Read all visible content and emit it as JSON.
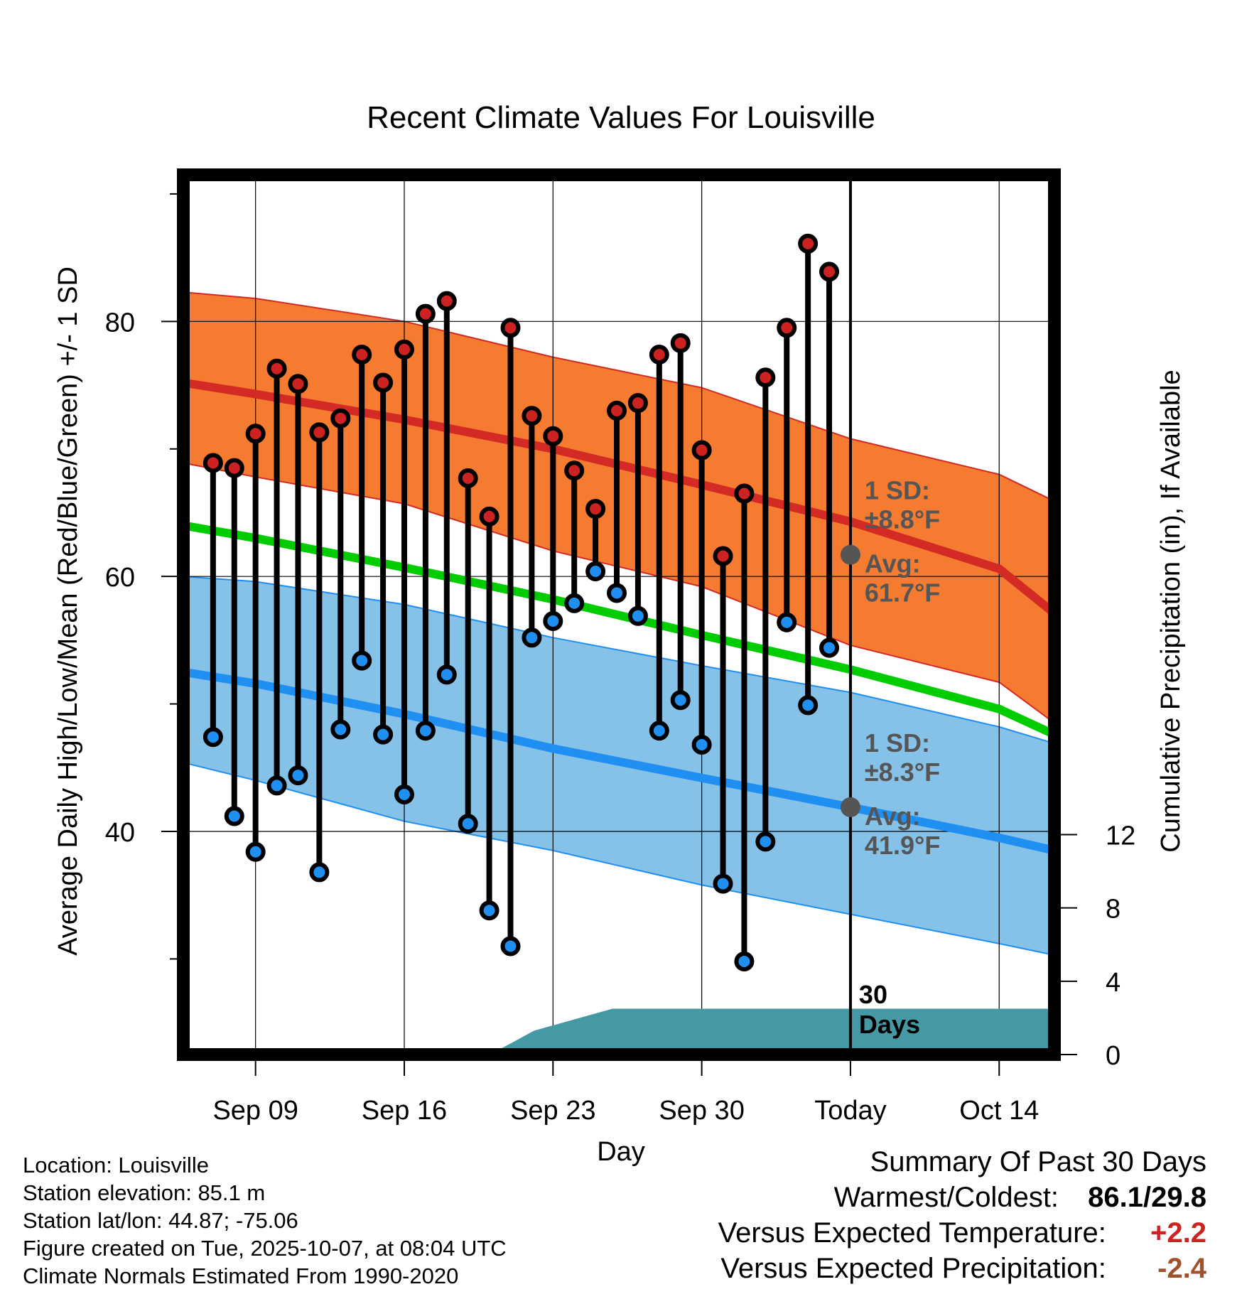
{
  "chart_data": {
    "type": "line",
    "title": "Recent Climate Values For Louisville",
    "xlabel": "Day",
    "ylabel": "Average Daily High/Low/Mean (Red/Blue/Green) +/- 1 SD",
    "ylabel_right": "Cumulative Precipitation (in), If Available",
    "x_tick_labels": [
      "Sep 09",
      "Sep 16",
      "Sep 23",
      "Sep 30",
      "Today",
      "Oct 14"
    ],
    "x_tick_days": [
      9,
      16,
      23,
      30,
      37,
      44
    ],
    "xlim": [
      5.6,
      46.6
    ],
    "ylim": [
      22.5,
      91.5
    ],
    "y_ticks": [
      40,
      60,
      80
    ],
    "y_ticks_right": [
      0,
      4,
      8,
      12
    ],
    "right_axis_range": [
      0,
      48
    ],
    "today_day": 37,
    "today_label": [
      "30",
      "Days"
    ],
    "normal_high": {
      "x": [
        5.6,
        9,
        16,
        23,
        30,
        37,
        44,
        46.6
      ],
      "values": [
        75.2,
        74.3,
        72.3,
        70.0,
        67.2,
        64.3,
        60.6,
        57.1
      ]
    },
    "normal_high_sd": {
      "upper": [
        82.3,
        81.8,
        80.0,
        77.2,
        74.8,
        70.8,
        68.0,
        65.9
      ],
      "lower": [
        68.9,
        67.8,
        65.7,
        62.0,
        59.2,
        54.6,
        51.7,
        48.5
      ]
    },
    "normal_mean": {
      "x": [
        5.6,
        9,
        16,
        23,
        30,
        37,
        44,
        46.6
      ],
      "values": [
        64.0,
        63.0,
        60.7,
        58.2,
        55.4,
        52.7,
        49.6,
        47.6
      ]
    },
    "normal_low": {
      "x": [
        5.6,
        9,
        16,
        23,
        30,
        37,
        44,
        46.6
      ],
      "values": [
        52.5,
        51.6,
        49.2,
        46.5,
        44.2,
        41.9,
        39.5,
        38.5
      ]
    },
    "normal_low_sd": {
      "upper": [
        60.0,
        59.6,
        57.8,
        55.2,
        53.0,
        50.9,
        48.2,
        46.9
      ],
      "lower": [
        45.4,
        44.0,
        40.8,
        38.5,
        35.8,
        33.5,
        31.2,
        30.3
      ]
    },
    "high_sd_label": [
      "1 SD:",
      "±8.8°F"
    ],
    "high_avg_label": [
      "Avg:",
      "61.7°F"
    ],
    "high_avg_value": 61.7,
    "low_sd_label": [
      "1 SD:",
      "±8.3°F"
    ],
    "low_avg_label": [
      "Avg:",
      "41.9°F"
    ],
    "low_avg_value": 41.9,
    "days": [
      7,
      8,
      9,
      10,
      11,
      12,
      13,
      14,
      15,
      16,
      17,
      18,
      19,
      20,
      21,
      22,
      23,
      24,
      25,
      26,
      27,
      28,
      29,
      30,
      31,
      32,
      33,
      34,
      35,
      36
    ],
    "highs": [
      68.9,
      68.5,
      71.2,
      76.3,
      75.1,
      71.3,
      72.4,
      77.4,
      75.2,
      77.8,
      80.6,
      81.6,
      67.7,
      64.7,
      79.5,
      72.6,
      71.0,
      68.3,
      65.3,
      73.0,
      73.6,
      77.4,
      78.3,
      69.9,
      61.6,
      66.5,
      75.6,
      79.5,
      86.1,
      83.9
    ],
    "lows": [
      47.4,
      41.2,
      38.4,
      43.6,
      44.4,
      36.8,
      48.0,
      53.4,
      47.6,
      42.9,
      47.9,
      52.3,
      40.6,
      33.8,
      31.0,
      55.2,
      56.5,
      57.9,
      60.4,
      58.7,
      56.9,
      47.9,
      50.3,
      46.8,
      35.9,
      29.8,
      39.2,
      56.4,
      49.9,
      54.4
    ],
    "precip": {
      "days": [
        18.7,
        20.0,
        21.0,
        22.1,
        25.8,
        46.6
      ],
      "values": [
        0,
        0,
        0.6,
        1.3,
        2.5,
        2.5
      ]
    }
  },
  "footer": {
    "location": "Location: Louisville",
    "elevation": "Station elevation: 85.1 m",
    "latlon": "Station lat/lon: 44.87; -75.06",
    "created": "Figure created on Tue, 2025-10-07, at 08:04 UTC",
    "normals": "Climate Normals Estimated From 1990-2020"
  },
  "summary": {
    "title": "Summary Of Past 30 Days",
    "warm_cold_label": "Warmest/Coldest:",
    "warm_cold_value": "86.1/29.8",
    "temp_label": "Versus Expected Temperature:",
    "temp_value": "+2.2",
    "precip_label": "Versus Expected Precipitation:",
    "precip_value": "-2.4"
  },
  "colors": {
    "high_line": "#d42a26",
    "high_band": "#f47b2f",
    "low_line": "#1f8ff2",
    "low_band": "#86c1e8",
    "mean_line": "#00cc00",
    "precip_fill": "#4499a4",
    "high_marker": "#cc2222",
    "low_marker": "#1f8ff2",
    "temp_value": "#cc2222",
    "precip_value": "#a0522d"
  }
}
